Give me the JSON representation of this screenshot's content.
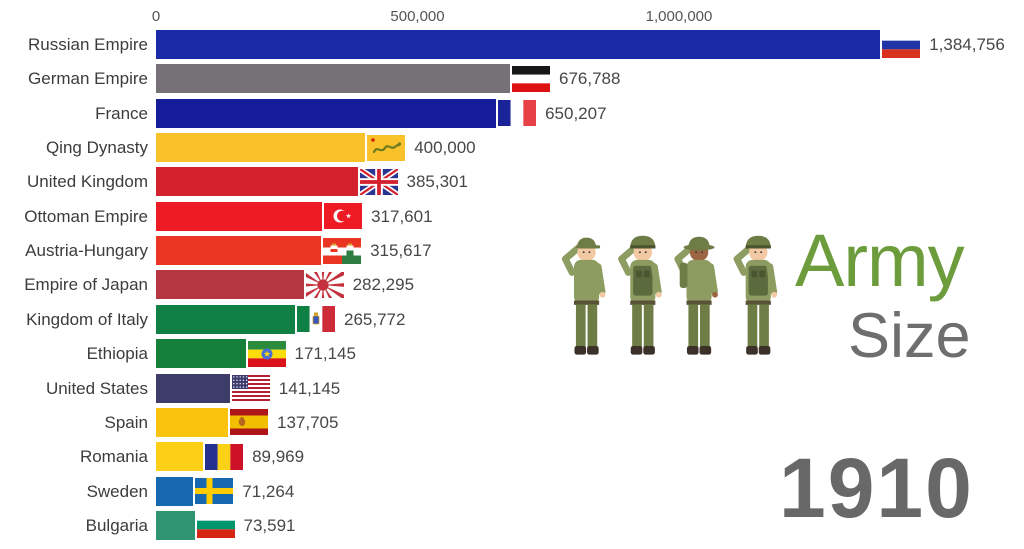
{
  "header": {
    "army_label": "Army",
    "size_label": "Size",
    "year": "1910",
    "army_color": "#6d9c3d",
    "size_color": "#6e6e6e",
    "year_color": "#686868"
  },
  "chart_data": {
    "type": "bar",
    "orientation": "horizontal",
    "title": "Army Size",
    "subtitle_year": "1910",
    "grid": false,
    "x_axis": {
      "position": "top",
      "ticks": [
        {
          "label": "0",
          "value": 0
        },
        {
          "label": "500,000",
          "value": 500000
        },
        {
          "label": "1,000,000",
          "value": 1000000
        }
      ],
      "max": 1660000
    },
    "label_color": "#3c3c3c",
    "value_color": "#474747",
    "axis_text_color": "#555555",
    "rows": [
      {
        "country": "Russian Empire",
        "value": 1384756,
        "value_label": "1,384,756",
        "bar_color": "#1b2aa6",
        "flag": "russian-empire"
      },
      {
        "country": "German Empire",
        "value": 676788,
        "value_label": "676,788",
        "bar_color": "#767077",
        "flag": "german-empire"
      },
      {
        "country": "France",
        "value": 650207,
        "value_label": "650,207",
        "bar_color": "#161d9b",
        "flag": "france"
      },
      {
        "country": "Qing Dynasty",
        "value": 400000,
        "value_label": "400,000",
        "bar_color": "#f9c22b",
        "flag": "qing-dynasty"
      },
      {
        "country": "United Kingdom",
        "value": 385301,
        "value_label": "385,301",
        "bar_color": "#d4212e",
        "flag": "united-kingdom"
      },
      {
        "country": "Ottoman Empire",
        "value": 317601,
        "value_label": "317,601",
        "bar_color": "#ef1b24",
        "flag": "ottoman-empire"
      },
      {
        "country": "Austria-Hungary",
        "value": 315617,
        "value_label": "315,617",
        "bar_color": "#ea3522",
        "flag": "austria-hungary"
      },
      {
        "country": "Empire of Japan",
        "value": 282295,
        "value_label": "282,295",
        "bar_color": "#b63741",
        "flag": "empire-of-japan"
      },
      {
        "country": "Kingdom of Italy",
        "value": 265772,
        "value_label": "265,772",
        "bar_color": "#108045",
        "flag": "kingdom-of-italy"
      },
      {
        "country": "Ethiopia",
        "value": 171145,
        "value_label": "171,145",
        "bar_color": "#15803a",
        "flag": "ethiopia"
      },
      {
        "country": "United States",
        "value": 141145,
        "value_label": "141,145",
        "bar_color": "#3e3c69",
        "flag": "united-states"
      },
      {
        "country": "Spain",
        "value": 137705,
        "value_label": "137,705",
        "bar_color": "#fac30d",
        "flag": "spain"
      },
      {
        "country": "Romania",
        "value": 89969,
        "value_label": "89,969",
        "bar_color": "#fdd017",
        "flag": "romania"
      },
      {
        "country": "Sweden",
        "value": 71264,
        "value_label": "71,264",
        "bar_color": "#1668b0",
        "flag": "sweden"
      },
      {
        "country": "Bulgaria",
        "value": 73591,
        "value_label": "73,591",
        "bar_color": "#2f9472",
        "flag": "bulgaria"
      }
    ]
  },
  "flags": {
    "russian-empire": {
      "type": "hstripes",
      "colors": [
        "#ffffff",
        "#2134a6",
        "#d8321f"
      ]
    },
    "german-empire": {
      "type": "hstripes",
      "colors": [
        "#171717",
        "#ffffff",
        "#dd1111"
      ]
    },
    "france": {
      "type": "vstripes",
      "colors": [
        "#1a2398",
        "#ffffff",
        "#e84047"
      ]
    },
    "qing-dynasty": {
      "type": "qing",
      "colors": [
        "#f9c22b",
        "#6e7a1e",
        "#cc2200"
      ]
    },
    "united-kingdom": {
      "type": "unionjack",
      "colors": [
        "#283593",
        "#ffffff",
        "#d4212e"
      ]
    },
    "ottoman-empire": {
      "type": "crescent",
      "colors": [
        "#ef1b24",
        "#ffffff"
      ]
    },
    "austria-hungary": {
      "type": "austria-hungary",
      "colors": [
        "#ea3522",
        "#ffffff",
        "#2e7d43",
        "#d9a62a"
      ]
    },
    "empire-of-japan": {
      "type": "risingsun",
      "colors": [
        "#ffffff",
        "#c4313c"
      ]
    },
    "kingdom-of-italy": {
      "type": "italy",
      "colors": [
        "#0e8044",
        "#ffffff",
        "#cd2b37",
        "#3a57c0",
        "#c9a227"
      ]
    },
    "ethiopia": {
      "type": "ethiopia",
      "colors": [
        "#2a8c3c",
        "#fcdd09",
        "#da121a",
        "#4a6fd4"
      ]
    },
    "united-states": {
      "type": "usa",
      "colors": [
        "#b22234",
        "#ffffff",
        "#3c3b6e"
      ]
    },
    "spain": {
      "type": "spain",
      "colors": [
        "#ad1519",
        "#f1bf00",
        "#b5651d"
      ]
    },
    "romania": {
      "type": "vstripes",
      "colors": [
        "#24318f",
        "#fcd116",
        "#ce1126"
      ]
    },
    "sweden": {
      "type": "cross",
      "colors": [
        "#1668b0",
        "#fecc00"
      ]
    },
    "bulgaria": {
      "type": "hstripes",
      "colors": [
        "#ffffff",
        "#00966e",
        "#d62612"
      ]
    }
  },
  "illustration": {
    "name": "four-saluting-soldiers",
    "uniform": "#8d9c60",
    "uniform_dark": "#6e7c45",
    "vest": "#5c6b3d",
    "band": "#4a5530",
    "skin_light": "#f3c9a3",
    "skin_dark": "#9c6644",
    "belt": "#5a5236",
    "boot": "#3b3128"
  }
}
